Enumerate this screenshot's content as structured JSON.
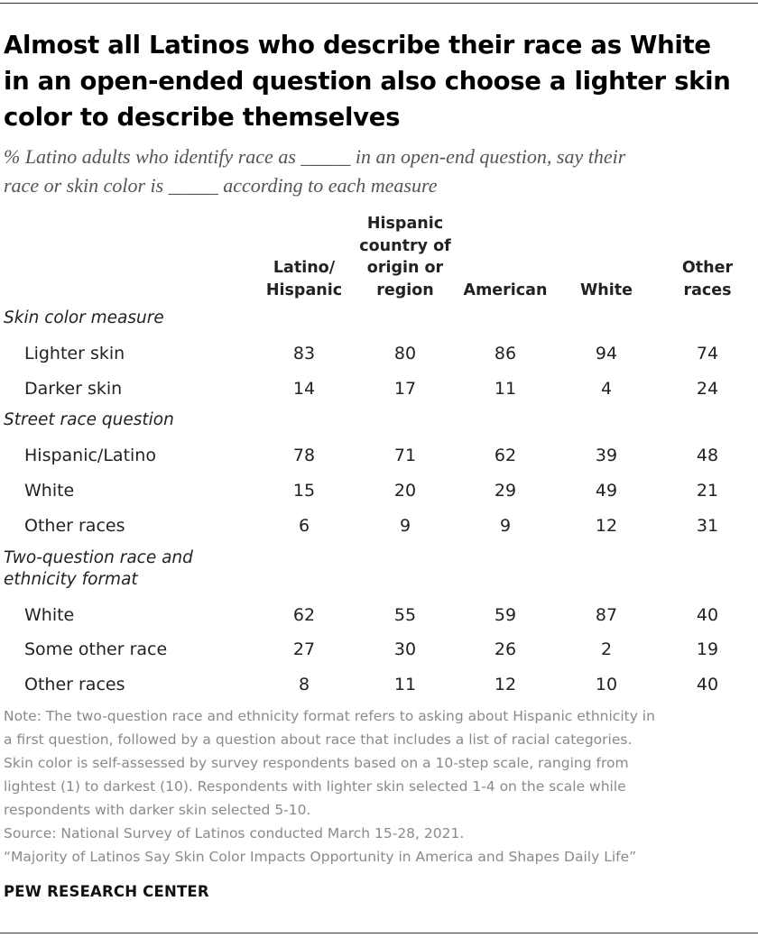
{
  "title_lines": [
    "Almost all Latinos who describe their race as White",
    "in an open-ended question also choose a lighter skin",
    "color to describe themselves"
  ],
  "subtitle_lines": [
    "% Latino adults who identify race as _____ in an open-end question, say their",
    "race or skin color is _____ according to each measure"
  ],
  "chart_data": {
    "type": "table",
    "columns": [
      {
        "lines": [
          "Latino/",
          "Hispanic"
        ]
      },
      {
        "lines": [
          "Hispanic",
          "country of",
          "origin or",
          "region"
        ]
      },
      {
        "lines": [
          "American"
        ]
      },
      {
        "lines": [
          "White"
        ]
      },
      {
        "lines": [
          "Other",
          "races"
        ]
      }
    ],
    "sections": [
      {
        "label_lines": [
          "Skin color measure"
        ],
        "rows": [
          {
            "label": "Lighter skin",
            "values": [
              83,
              80,
              86,
              94,
              74
            ]
          },
          {
            "label": "Darker skin",
            "values": [
              14,
              17,
              11,
              4,
              24
            ]
          }
        ]
      },
      {
        "label_lines": [
          "Street race question"
        ],
        "rows": [
          {
            "label": "Hispanic/Latino",
            "values": [
              78,
              71,
              62,
              39,
              48
            ]
          },
          {
            "label": "White",
            "values": [
              15,
              20,
              29,
              49,
              21
            ]
          },
          {
            "label": "Other races",
            "values": [
              6,
              9,
              9,
              12,
              31
            ]
          }
        ]
      },
      {
        "label_lines": [
          "Two-question race and",
          "ethnicity format"
        ],
        "rows": [
          {
            "label": "White",
            "values": [
              62,
              55,
              59,
              87,
              40
            ]
          },
          {
            "label": "Some other race",
            "values": [
              27,
              30,
              26,
              2,
              19
            ]
          },
          {
            "label": "Other races",
            "values": [
              8,
              11,
              12,
              10,
              40
            ]
          }
        ]
      }
    ]
  },
  "note_lines": [
    "Note: The two-question race and ethnicity format refers to asking about Hispanic ethnicity in",
    "a first question, followed by a question about race that includes a list of racial categories.",
    "Skin color is self-assessed by survey respondents based on a 10-step scale, ranging from",
    "lightest (1) to darkest (10). Respondents with lighter skin selected 1-4 on the scale while",
    "respondents with darker skin selected 5-10.",
    "Source: National Survey of Latinos conducted March 15-28, 2021.",
    "“Majority of Latinos Say Skin Color Impacts Opportunity in America and Shapes Daily Life”"
  ],
  "brand": "PEW RESEARCH CENTER"
}
